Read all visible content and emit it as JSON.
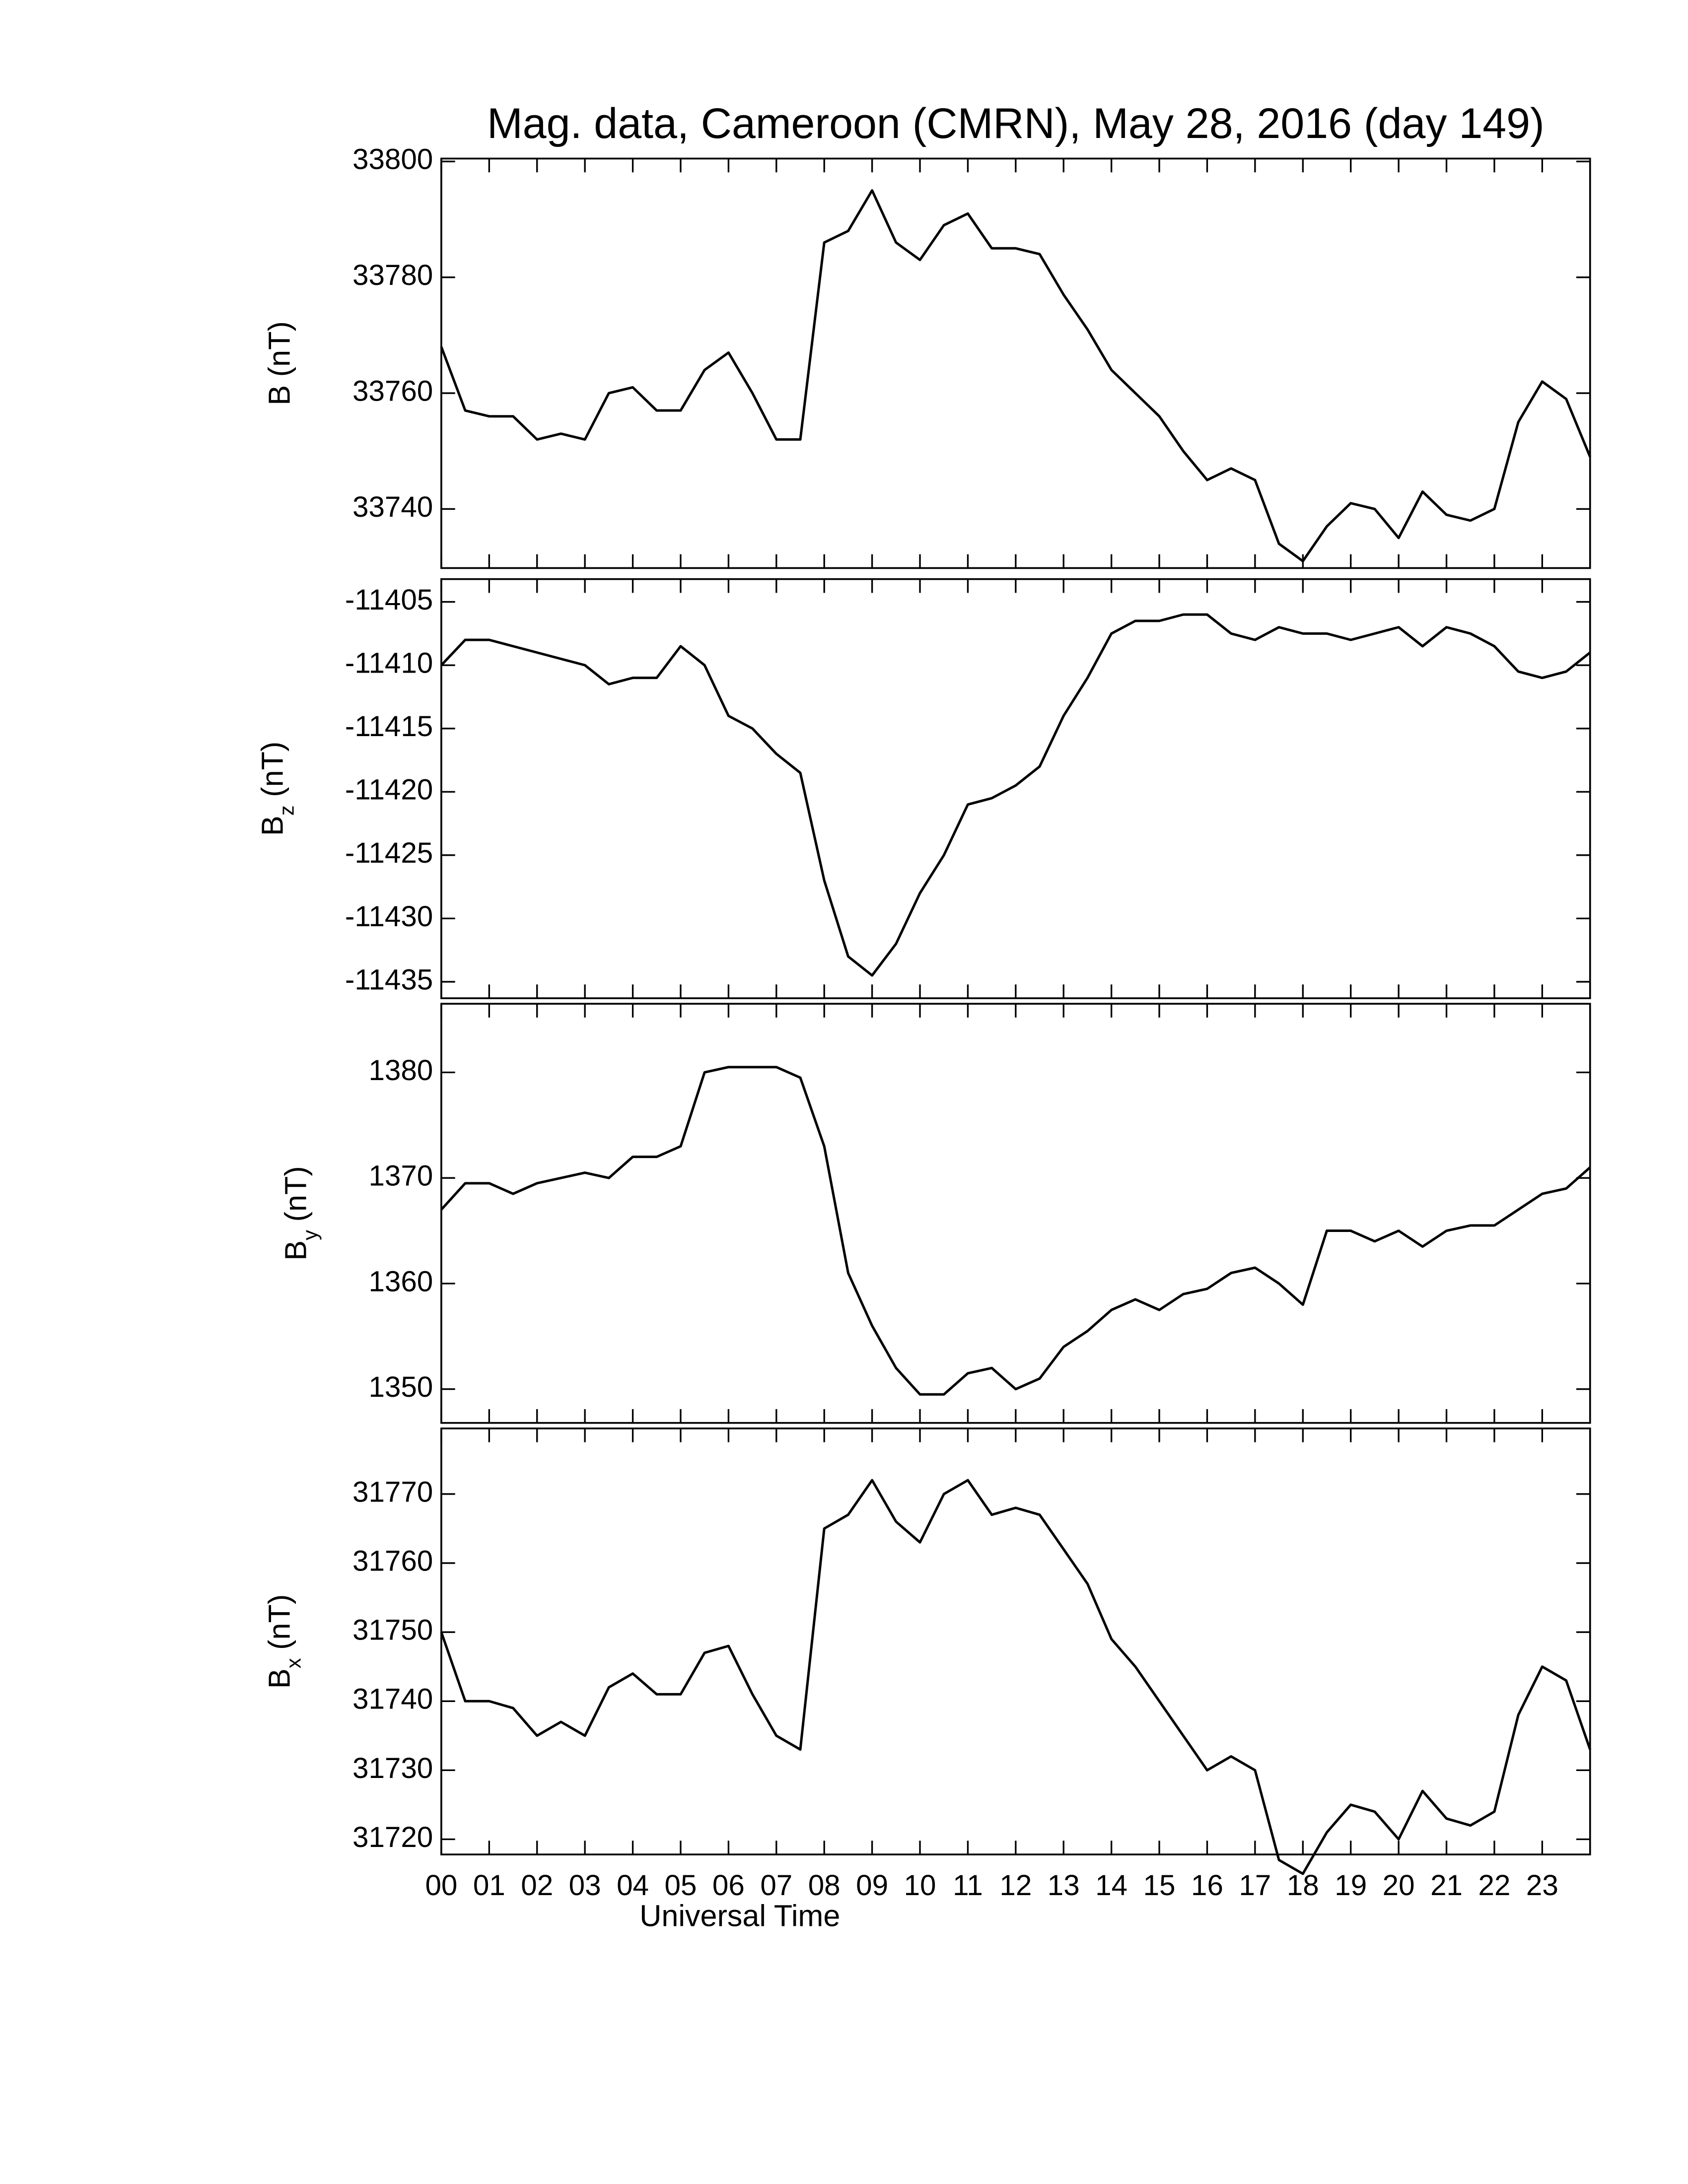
{
  "chart_data": [
    {
      "type": "line",
      "title": "Mag. data, Cameroon (CMRN), May 28, 2016 (day 149)",
      "ylabel": "B",
      "ylabel_unit": "(nT)",
      "color": "#000000",
      "xlim": [
        0,
        24
      ],
      "xticks": [
        0,
        1,
        2,
        3,
        4,
        5,
        6,
        7,
        8,
        9,
        10,
        11,
        12,
        13,
        14,
        15,
        16,
        17,
        18,
        19,
        20,
        21,
        22,
        23
      ],
      "ylim": [
        33729.8,
        33800.5
      ],
      "yticks": [
        33800,
        33780,
        33760,
        33740
      ],
      "x": [
        0,
        0.5,
        1,
        1.5,
        2,
        2.5,
        3,
        3.5,
        4,
        4.5,
        5,
        5.5,
        6,
        6.5,
        7,
        7.5,
        8,
        8.5,
        9,
        9.5,
        10,
        10.5,
        11,
        11.5,
        12,
        12.5,
        13,
        13.5,
        14,
        14.5,
        15,
        15.5,
        16,
        16.5,
        17,
        17.5,
        18,
        18.5,
        19,
        19.5,
        20,
        20.5,
        21,
        21.5,
        22,
        22.5,
        23,
        23.5,
        24
      ],
      "values": [
        33768,
        33757,
        33756,
        33756,
        33752,
        33753,
        33752,
        33760,
        33761,
        33757,
        33757,
        33764,
        33767,
        33760,
        33752,
        33752,
        33786,
        33788,
        33795,
        33786,
        33783,
        33789,
        33791,
        33785,
        33785,
        33784,
        33777,
        33771,
        33764,
        33760,
        33756,
        33750,
        33745,
        33747,
        33745,
        33734,
        33731,
        33737,
        33741,
        33740,
        33735,
        33743,
        33739,
        33738,
        33740,
        33755,
        33762,
        33759,
        33749
      ]
    },
    {
      "type": "line",
      "ylabel": "B",
      "ylabel_sub": "z",
      "ylabel_unit": "(nT)",
      "color": "#000000",
      "xlim": [
        0,
        24
      ],
      "xticks": [
        0,
        1,
        2,
        3,
        4,
        5,
        6,
        7,
        8,
        9,
        10,
        11,
        12,
        13,
        14,
        15,
        16,
        17,
        18,
        19,
        20,
        21,
        22,
        23
      ],
      "ylim": [
        -11436.3,
        -11403.2
      ],
      "yticks": [
        -11405,
        -11410,
        -11415,
        -11420,
        -11425,
        -11430,
        -11435
      ],
      "x": [
        0,
        0.5,
        1,
        1.5,
        2,
        2.5,
        3,
        3.5,
        4,
        4.5,
        5,
        5.5,
        6,
        6.5,
        7,
        7.5,
        8,
        8.5,
        9,
        9.5,
        10,
        10.5,
        11,
        11.5,
        12,
        12.5,
        13,
        13.5,
        14,
        14.5,
        15,
        15.5,
        16,
        16.5,
        17,
        17.5,
        18,
        18.5,
        19,
        19.5,
        20,
        20.5,
        21,
        21.5,
        22,
        22.5,
        23,
        23.5,
        24
      ],
      "values": [
        -11410,
        -11408,
        -11408,
        -11408.5,
        -11409,
        -11409.5,
        -11410,
        -11411.5,
        -11411,
        -11411,
        -11408.5,
        -11410,
        -11414,
        -11415,
        -11417,
        -11418.5,
        -11427,
        -11433,
        -11434.5,
        -11432,
        -11428,
        -11425,
        -11421,
        -11420.5,
        -11419.5,
        -11418,
        -11414,
        -11411,
        -11407.5,
        -11406.5,
        -11406.5,
        -11406,
        -11406,
        -11407.5,
        -11408,
        -11407,
        -11407.5,
        -11407.5,
        -11408,
        -11407.5,
        -11407,
        -11408.5,
        -11407,
        -11407.5,
        -11408.5,
        -11410.5,
        -11411,
        -11410.5,
        -11409
      ]
    },
    {
      "type": "line",
      "ylabel": "B",
      "ylabel_sub": "y",
      "ylabel_unit": "(nT)",
      "color": "#000000",
      "xlim": [
        0,
        24
      ],
      "xticks": [
        0,
        1,
        2,
        3,
        4,
        5,
        6,
        7,
        8,
        9,
        10,
        11,
        12,
        13,
        14,
        15,
        16,
        17,
        18,
        19,
        20,
        21,
        22,
        23
      ],
      "ylim": [
        1346.8,
        1386.5
      ],
      "yticks": [
        1380,
        1370,
        1360,
        1350
      ],
      "x": [
        0,
        0.5,
        1,
        1.5,
        2,
        2.5,
        3,
        3.5,
        4,
        4.5,
        5,
        5.5,
        6,
        6.5,
        7,
        7.5,
        8,
        8.5,
        9,
        9.5,
        10,
        10.5,
        11,
        11.5,
        12,
        12.5,
        13,
        13.5,
        14,
        14.5,
        15,
        15.5,
        16,
        16.5,
        17,
        17.5,
        18,
        18.5,
        19,
        19.5,
        20,
        20.5,
        21,
        21.5,
        22,
        22.5,
        23,
        23.5,
        24
      ],
      "values": [
        1367,
        1369.5,
        1369.5,
        1368.5,
        1369.5,
        1370,
        1370.5,
        1370,
        1372,
        1372,
        1373,
        1380,
        1380.5,
        1380.5,
        1380.5,
        1379.5,
        1373,
        1361,
        1356,
        1352,
        1349.5,
        1349.5,
        1351.5,
        1352,
        1350,
        1351,
        1354,
        1355.5,
        1357.5,
        1358.5,
        1357.5,
        1359,
        1359.5,
        1361,
        1361.5,
        1360,
        1358,
        1365,
        1365,
        1364,
        1365,
        1363.5,
        1365,
        1365.5,
        1365.5,
        1367,
        1368.5,
        1369,
        1371
      ]
    },
    {
      "type": "line",
      "ylabel": "B",
      "ylabel_sub": "x",
      "ylabel_unit": "(nT)",
      "xlabel": "Universal Time",
      "color": "#000000",
      "xlim": [
        0,
        24
      ],
      "xticks": [
        {
          "value": 0,
          "label": "00"
        },
        {
          "value": 1,
          "label": "01"
        },
        {
          "value": 2,
          "label": "02"
        },
        {
          "value": 3,
          "label": "03"
        },
        {
          "value": 4,
          "label": "04"
        },
        {
          "value": 5,
          "label": "05"
        },
        {
          "value": 6,
          "label": "06"
        },
        {
          "value": 7,
          "label": "07"
        },
        {
          "value": 8,
          "label": "08"
        },
        {
          "value": 9,
          "label": "09"
        },
        10,
        11,
        12,
        13,
        14,
        15,
        16,
        17,
        18,
        19,
        20,
        21,
        22,
        23
      ],
      "ylim": [
        31717.8,
        31779.5
      ],
      "yticks": [
        31770,
        31760,
        31750,
        31740,
        31730,
        31720
      ],
      "x": [
        0,
        0.5,
        1,
        1.5,
        2,
        2.5,
        3,
        3.5,
        4,
        4.5,
        5,
        5.5,
        6,
        6.5,
        7,
        7.5,
        8,
        8.5,
        9,
        9.5,
        10,
        10.5,
        11,
        11.5,
        12,
        12.5,
        13,
        13.5,
        14,
        14.5,
        15,
        15.5,
        16,
        16.5,
        17,
        17.5,
        18,
        18.5,
        19,
        19.5,
        20,
        20.5,
        21,
        21.5,
        22,
        22.5,
        23,
        23.5,
        24
      ],
      "values": [
        31750,
        31740,
        31740,
        31739,
        31735,
        31737,
        31735,
        31742,
        31744,
        31741,
        31741,
        31747,
        31748,
        31741,
        31735,
        31733,
        31765,
        31767,
        31772,
        31766,
        31763,
        31770,
        31772,
        31767,
        31768,
        31767,
        31762,
        31757,
        31749,
        31745,
        31740,
        31735,
        31730,
        31732,
        31730,
        31717,
        31715,
        31721,
        31725,
        31724,
        31720,
        31727,
        31723,
        31722,
        31724,
        31738,
        31745,
        31743,
        31733
      ]
    }
  ]
}
